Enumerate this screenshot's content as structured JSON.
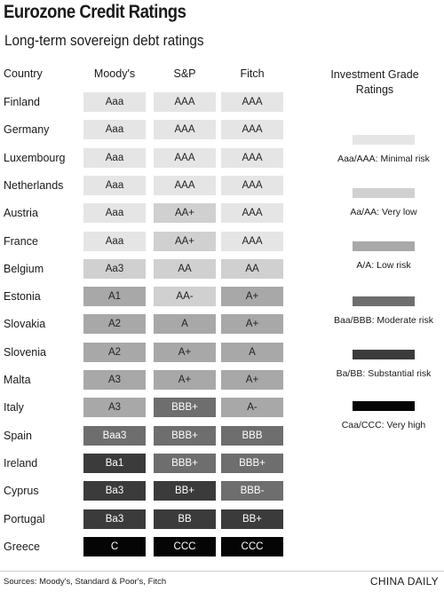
{
  "title": "Eurozone Credit Ratings",
  "subtitle": "Long-term sovereign debt ratings",
  "chart_data": {
    "type": "table",
    "columns": [
      "Country",
      "Moody's",
      "S&P",
      "Fitch"
    ],
    "rows": [
      {
        "country": "Finland",
        "moodys": "Aaa",
        "sp": "AAA",
        "fitch": "AAA",
        "tiers": [
          1,
          1,
          1
        ]
      },
      {
        "country": "Germany",
        "moodys": "Aaa",
        "sp": "AAA",
        "fitch": "AAA",
        "tiers": [
          1,
          1,
          1
        ]
      },
      {
        "country": "Luxembourg",
        "moodys": "Aaa",
        "sp": "AAA",
        "fitch": "AAA",
        "tiers": [
          1,
          1,
          1
        ]
      },
      {
        "country": "Netherlands",
        "moodys": "Aaa",
        "sp": "AAA",
        "fitch": "AAA",
        "tiers": [
          1,
          1,
          1
        ]
      },
      {
        "country": "Austria",
        "moodys": "Aaa",
        "sp": "AA+",
        "fitch": "AAA",
        "tiers": [
          1,
          2,
          1
        ]
      },
      {
        "country": "France",
        "moodys": "Aaa",
        "sp": "AA+",
        "fitch": "AAA",
        "tiers": [
          1,
          2,
          1
        ]
      },
      {
        "country": "Belgium",
        "moodys": "Aa3",
        "sp": "AA",
        "fitch": "AA",
        "tiers": [
          2,
          2,
          2
        ]
      },
      {
        "country": "Estonia",
        "moodys": "A1",
        "sp": "AA-",
        "fitch": "A+",
        "tiers": [
          3,
          2,
          3
        ]
      },
      {
        "country": "Slovakia",
        "moodys": "A2",
        "sp": "A",
        "fitch": "A+",
        "tiers": [
          3,
          3,
          3
        ]
      },
      {
        "country": "Slovenia",
        "moodys": "A2",
        "sp": "A+",
        "fitch": "A",
        "tiers": [
          3,
          3,
          3
        ]
      },
      {
        "country": "Malta",
        "moodys": "A3",
        "sp": "A+",
        "fitch": "A+",
        "tiers": [
          3,
          3,
          3
        ]
      },
      {
        "country": "Italy",
        "moodys": "A3",
        "sp": "BBB+",
        "fitch": "A-",
        "tiers": [
          3,
          4,
          3
        ]
      },
      {
        "country": "Spain",
        "moodys": "Baa3",
        "sp": "BBB+",
        "fitch": "BBB",
        "tiers": [
          4,
          4,
          4
        ]
      },
      {
        "country": "Ireland",
        "moodys": "Ba1",
        "sp": "BBB+",
        "fitch": "BBB+",
        "tiers": [
          5,
          4,
          4
        ]
      },
      {
        "country": "Cyprus",
        "moodys": "Ba3",
        "sp": "BB+",
        "fitch": "BBB-",
        "tiers": [
          5,
          5,
          4
        ]
      },
      {
        "country": "Portugal",
        "moodys": "Ba3",
        "sp": "BB",
        "fitch": "BB+",
        "tiers": [
          5,
          5,
          5
        ]
      },
      {
        "country": "Greece",
        "moodys": "C",
        "sp": "CCC",
        "fitch": "CCC",
        "tiers": [
          6,
          6,
          6
        ]
      }
    ],
    "legend_title": "Investment Grade Ratings",
    "legend": [
      {
        "tier": 1,
        "label": "Aaa/AAA: Minimal risk",
        "color": "#e5e5e5"
      },
      {
        "tier": 2,
        "label": "Aa/AA: Very low",
        "color": "#d0d0d0"
      },
      {
        "tier": 3,
        "label": "A/A: Low risk",
        "color": "#a8a8a8"
      },
      {
        "tier": 4,
        "label": "Baa/BBB: Moderate risk",
        "color": "#6e6e6e"
      },
      {
        "tier": 5,
        "label": "Ba/BB: Substantial risk",
        "color": "#3b3b3b"
      },
      {
        "tier": 6,
        "label": "Caa/CCC: Very high",
        "color": "#050505"
      }
    ]
  },
  "footer": {
    "source": "Sources: Moody's, Standard & Poor's, Fitch",
    "credit": "CHINA DAILY"
  }
}
